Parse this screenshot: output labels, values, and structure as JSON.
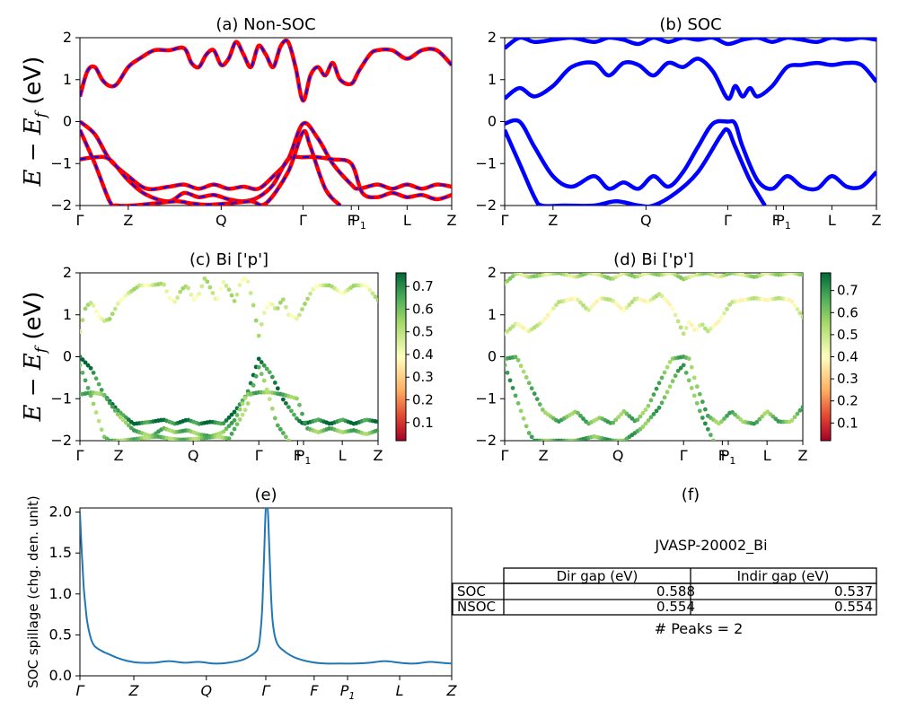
{
  "figure": {
    "ylabel_top": "E − E",
    "ylabel_sub": "f",
    "ylabel_unit": " (eV)",
    "ylabel_mid": "E − E",
    "ylabel_mid_sub": "f",
    "ylabel_mid_unit": " (eV)"
  },
  "chart_data": [
    {
      "panel": "a",
      "type": "line",
      "title": "(a) Non-SOC",
      "ylim": [
        -2,
        2
      ],
      "yticks": [
        "2",
        "1",
        "0",
        "−1",
        "−2"
      ],
      "xticks": [
        "Γ",
        "Z",
        "Q",
        "Γ",
        "F",
        "P1",
        "L",
        "Z"
      ],
      "xtick_positions": [
        0,
        0.13,
        0.38,
        0.6,
        0.73,
        0.75,
        0.88,
        1.0
      ],
      "series": [
        {
          "color": "#ff0000",
          "style": "solid",
          "role": "spin-up"
        },
        {
          "color": "#0000ff",
          "style": "dashed",
          "role": "spin-down"
        }
      ],
      "bands": [
        {
          "x": [
            0,
            0.02,
            0.04,
            0.06,
            0.08,
            0.1,
            0.13,
            0.16,
            0.2,
            0.24,
            0.28,
            0.3,
            0.32,
            0.34,
            0.36,
            0.38,
            0.4,
            0.42,
            0.44,
            0.46,
            0.48,
            0.5,
            0.52,
            0.54,
            0.56,
            0.58,
            0.6,
            0.62,
            0.64,
            0.66,
            0.68,
            0.7,
            0.73,
            0.75,
            0.78,
            0.8,
            0.84,
            0.88,
            0.92,
            0.96,
            1.0
          ],
          "y": [
            0.6,
            1.2,
            1.3,
            1.0,
            0.85,
            0.9,
            1.3,
            1.5,
            1.7,
            1.7,
            1.75,
            1.4,
            1.3,
            1.6,
            1.7,
            1.35,
            1.5,
            1.9,
            1.6,
            1.3,
            1.8,
            1.6,
            1.3,
            1.8,
            1.9,
            1.3,
            0.5,
            1.1,
            1.3,
            1.1,
            1.4,
            1.0,
            0.9,
            1.2,
            1.6,
            1.7,
            1.7,
            1.5,
            1.7,
            1.7,
            1.35
          ]
        },
        {
          "x": [
            0,
            0.04,
            0.08,
            0.13,
            0.18,
            0.24,
            0.28,
            0.32,
            0.36,
            0.4,
            0.44,
            0.48,
            0.52,
            0.56,
            0.6,
            0.64,
            0.68,
            0.73,
            0.75,
            0.8,
            0.84,
            0.88,
            0.92,
            0.96,
            1.0
          ],
          "y": [
            0,
            -0.3,
            -0.9,
            -1.3,
            -1.6,
            -1.55,
            -1.5,
            -1.6,
            -1.5,
            -1.6,
            -1.55,
            -1.6,
            -1.3,
            -0.9,
            -0.05,
            -0.4,
            -1.0,
            -1.5,
            -1.6,
            -1.5,
            -1.6,
            -1.5,
            -1.6,
            -1.5,
            -1.55
          ]
        },
        {
          "x": [
            0,
            0.04,
            0.08,
            0.13,
            0.18,
            0.24,
            0.28,
            0.32,
            0.36,
            0.4,
            0.44,
            0.48,
            0.52,
            0.56,
            0.6,
            0.64,
            0.68,
            0.73,
            0.76,
            0.8,
            0.84,
            0.88,
            0.92,
            0.96,
            1.0
          ],
          "y": [
            -0.9,
            -0.85,
            -0.9,
            -1.4,
            -1.75,
            -1.9,
            -1.7,
            -1.8,
            -1.75,
            -1.85,
            -1.9,
            -1.8,
            -1.5,
            -0.9,
            -0.85,
            -0.85,
            -0.9,
            -1.0,
            -1.7,
            -1.8,
            -1.7,
            -1.8,
            -1.75,
            -1.85,
            -1.75
          ]
        },
        {
          "x": [
            0,
            0.04,
            0.08,
            0.1,
            0.14,
            0.2,
            0.26,
            0.3,
            0.34,
            0.4,
            0.46,
            0.5,
            0.56,
            0.6,
            0.62,
            0.66,
            0.7
          ],
          "y": [
            -0.2,
            -1.0,
            -1.9,
            -2.0,
            -2.0,
            -1.95,
            -1.9,
            -1.95,
            -1.98,
            -1.95,
            -1.9,
            -1.95,
            -1.2,
            -0.25,
            -0.6,
            -1.6,
            -2.0
          ]
        }
      ]
    },
    {
      "panel": "b",
      "type": "line",
      "title": "(b) SOC",
      "ylim": [
        -2,
        2
      ],
      "yticks": [
        "2",
        "1",
        "0",
        "−1",
        "−2"
      ],
      "xticks": [
        "Γ",
        "Z",
        "Q",
        "Γ",
        "F",
        "P1",
        "L",
        "Z"
      ],
      "xtick_positions": [
        0,
        0.13,
        0.38,
        0.6,
        0.73,
        0.75,
        0.88,
        1.0
      ],
      "series": [
        {
          "color": "#0000ff",
          "style": "solid"
        }
      ],
      "bands": [
        {
          "x": [
            0,
            0.04,
            0.08,
            0.13,
            0.18,
            0.24,
            0.28,
            0.32,
            0.36,
            0.4,
            0.44,
            0.48,
            0.52,
            0.56,
            0.6,
            0.64,
            0.68,
            0.72,
            0.76,
            0.8,
            0.84,
            0.88,
            0.92,
            0.96,
            1.0
          ],
          "y": [
            1.75,
            2.0,
            1.9,
            1.95,
            2.0,
            1.9,
            2.0,
            1.95,
            1.85,
            2.0,
            1.9,
            2.0,
            1.95,
            2.0,
            1.85,
            1.95,
            2.0,
            1.9,
            2.0,
            1.95,
            1.9,
            2.0,
            1.95,
            2.0,
            1.95
          ]
        },
        {
          "x": [
            0,
            0.04,
            0.08,
            0.13,
            0.18,
            0.24,
            0.28,
            0.32,
            0.36,
            0.4,
            0.44,
            0.48,
            0.52,
            0.56,
            0.6,
            0.62,
            0.64,
            0.66,
            0.68,
            0.72,
            0.76,
            0.8,
            0.84,
            0.88,
            0.92,
            0.96,
            1.0
          ],
          "y": [
            0.55,
            0.8,
            0.6,
            0.85,
            1.3,
            1.4,
            1.1,
            1.4,
            1.35,
            1.1,
            1.4,
            1.3,
            1.5,
            1.2,
            0.55,
            0.85,
            0.6,
            0.8,
            0.6,
            0.85,
            1.3,
            1.35,
            1.4,
            1.35,
            1.4,
            1.35,
            0.95
          ]
        },
        {
          "x": [
            0,
            0.04,
            0.08,
            0.13,
            0.18,
            0.24,
            0.28,
            0.32,
            0.36,
            0.4,
            0.44,
            0.48,
            0.52,
            0.56,
            0.6,
            0.62,
            0.64,
            0.68,
            0.72,
            0.76,
            0.8,
            0.84,
            0.88,
            0.92,
            0.96,
            1.0
          ],
          "y": [
            -0.05,
            0.0,
            -0.6,
            -1.3,
            -1.55,
            -1.3,
            -1.6,
            -1.45,
            -1.6,
            -1.3,
            -1.55,
            -1.2,
            -0.6,
            -0.05,
            0.0,
            -0.05,
            -0.6,
            -1.4,
            -1.6,
            -1.3,
            -1.55,
            -1.6,
            -1.3,
            -1.55,
            -1.55,
            -1.2
          ]
        },
        {
          "x": [
            0,
            0.04,
            0.08,
            0.1,
            0.16,
            0.24,
            0.3,
            0.36,
            0.4,
            0.46,
            0.52,
            0.58,
            0.6,
            0.62,
            0.66,
            0.7
          ],
          "y": [
            -0.2,
            -1.0,
            -1.8,
            -2.0,
            -2.0,
            -2.0,
            -1.9,
            -2.0,
            -2.0,
            -1.7,
            -1.2,
            -0.35,
            -0.2,
            -0.6,
            -1.4,
            -2.0
          ]
        }
      ]
    },
    {
      "panel": "c",
      "type": "scatter",
      "title": "(c)  Bi ['p']",
      "ylim": [
        -2,
        2
      ],
      "yticks": [
        "2",
        "1",
        "0",
        "−1",
        "−2"
      ],
      "xticks": [
        "Γ",
        "Z",
        "Q",
        "Γ",
        "F",
        "P1",
        "L",
        "Z"
      ],
      "xtick_positions": [
        0,
        0.13,
        0.38,
        0.6,
        0.73,
        0.75,
        0.88,
        1.0
      ],
      "colorbar": {
        "ticks": [
          "0.7",
          "0.6",
          "0.5",
          "0.4",
          "0.3",
          "0.2",
          "0.1"
        ],
        "range": [
          0.02,
          0.76
        ],
        "colormap": "RdYlGn"
      }
    },
    {
      "panel": "d",
      "type": "scatter",
      "title": "(d) Bi ['p']",
      "ylim": [
        -2,
        2
      ],
      "yticks": [
        "2",
        "1",
        "0",
        "−1",
        "−2"
      ],
      "xticks": [
        "Γ",
        "Z",
        "Q",
        "Γ",
        "F",
        "P1",
        "L",
        "Z"
      ],
      "xtick_positions": [
        0,
        0.13,
        0.38,
        0.6,
        0.73,
        0.75,
        0.88,
        1.0
      ],
      "colorbar": {
        "ticks": [
          "0.7",
          "0.6",
          "0.5",
          "0.4",
          "0.3",
          "0.2",
          "0.1"
        ],
        "range": [
          0.02,
          0.78
        ],
        "colormap": "RdYlGn"
      }
    },
    {
      "panel": "e",
      "type": "line",
      "title": "(e)",
      "ylabel": "SOC spillage (chg. den. unit)",
      "ylim": [
        0,
        2.05
      ],
      "yticks": [
        "0.0",
        "0.5",
        "1.0",
        "1.5",
        "2.0"
      ],
      "ytick_values": [
        0,
        0.5,
        1.0,
        1.5,
        2.0
      ],
      "xticks": [
        "Γ",
        "Z",
        "Q",
        "Γ",
        "F",
        "P1",
        "L",
        "Z"
      ],
      "xtick_positions": [
        0,
        0.145,
        0.34,
        0.5,
        0.63,
        0.72,
        0.86,
        1.0
      ],
      "series": [
        {
          "color": "#1f77b4"
        }
      ],
      "x": [
        0,
        0.005,
        0.01,
        0.015,
        0.02,
        0.03,
        0.04,
        0.06,
        0.08,
        0.1,
        0.13,
        0.16,
        0.2,
        0.24,
        0.28,
        0.32,
        0.36,
        0.4,
        0.44,
        0.47,
        0.48,
        0.485,
        0.49,
        0.495,
        0.5,
        0.505,
        0.51,
        0.515,
        0.52,
        0.53,
        0.55,
        0.58,
        0.62,
        0.66,
        0.7,
        0.74,
        0.78,
        0.82,
        0.86,
        0.9,
        0.94,
        0.97,
        1.0
      ],
      "y": [
        2.0,
        1.5,
        1.1,
        0.85,
        0.65,
        0.45,
        0.36,
        0.3,
        0.26,
        0.22,
        0.18,
        0.16,
        0.16,
        0.18,
        0.16,
        0.17,
        0.15,
        0.16,
        0.2,
        0.28,
        0.35,
        0.5,
        0.8,
        1.4,
        2.05,
        2.05,
        1.5,
        0.9,
        0.6,
        0.4,
        0.3,
        0.22,
        0.17,
        0.15,
        0.15,
        0.15,
        0.16,
        0.18,
        0.16,
        0.15,
        0.17,
        0.16,
        0.15
      ]
    }
  ],
  "panel_f": {
    "title": "(f)",
    "material": "JVASP-20002_Bi",
    "col_headers": [
      "Dir gap (eV)",
      "Indir gap (eV)"
    ],
    "rows": [
      {
        "label": "SOC",
        "dir": "0.588",
        "indir": "0.537"
      },
      {
        "label": "NSOC",
        "dir": "0.554",
        "indir": "0.554"
      }
    ],
    "peaks": "# Peaks = 2"
  }
}
